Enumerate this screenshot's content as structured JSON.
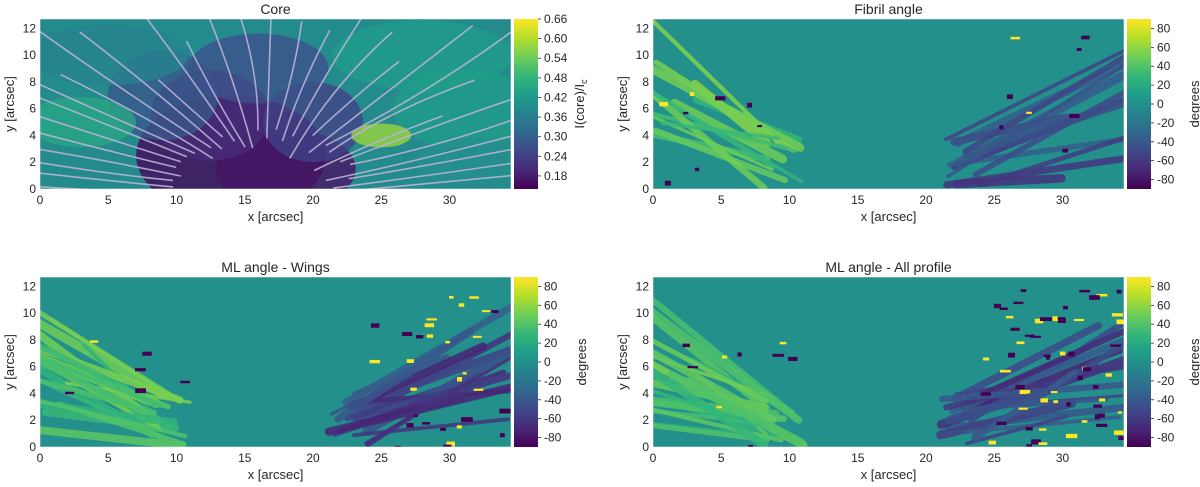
{
  "figure": {
    "colormap": [
      "#440154",
      "#482878",
      "#3e4989",
      "#31688e",
      "#26828e",
      "#1f9e89",
      "#35b779",
      "#6ece58",
      "#b5de2b",
      "#fde725"
    ],
    "contour_color": "#b9b2d6"
  },
  "chart_data": [
    {
      "type": "heatmap",
      "title": "Core",
      "xlabel": "x [arcsec]",
      "ylabel": "y [arcsec]",
      "xlim": [
        0,
        34.5
      ],
      "ylim": [
        0,
        12.7
      ],
      "xticks": [
        "0",
        "5",
        "10",
        "15",
        "20",
        "25",
        "30"
      ],
      "yticks": [
        "0",
        "2",
        "4",
        "6",
        "8",
        "10",
        "12"
      ],
      "colorbar": {
        "label": "I(core)/I",
        "label_sub": "c",
        "range": [
          0.14,
          0.66
        ],
        "ticks": [
          "0.18",
          "0.24",
          "0.30",
          "0.36",
          "0.42",
          "0.48",
          "0.54",
          "0.60",
          "0.66"
        ]
      },
      "overlay": "contours",
      "grid": false
    },
    {
      "type": "heatmap",
      "title": "Fibril angle",
      "xlabel": "x [arcsec]",
      "ylabel": "y [arcsec]",
      "xlim": [
        0,
        34.5
      ],
      "ylim": [
        0,
        12.7
      ],
      "xticks": [
        "0",
        "5",
        "10",
        "15",
        "20",
        "25",
        "30"
      ],
      "yticks": [
        "0",
        "2",
        "4",
        "6",
        "8",
        "10",
        "12"
      ],
      "colorbar": {
        "label": "degrees",
        "range": [
          -90,
          90
        ],
        "ticks": [
          "-80",
          "-60",
          "-40",
          "-20",
          "0",
          "20",
          "40",
          "60",
          "80"
        ]
      },
      "grid": false
    },
    {
      "type": "heatmap",
      "title": "ML angle - Wings",
      "xlabel": "x [arcsec]",
      "ylabel": "y [arcsec]",
      "xlim": [
        0,
        34.5
      ],
      "ylim": [
        0,
        12.7
      ],
      "xticks": [
        "0",
        "5",
        "10",
        "15",
        "20",
        "25",
        "30"
      ],
      "yticks": [
        "0",
        "2",
        "4",
        "6",
        "8",
        "10",
        "12"
      ],
      "colorbar": {
        "label": "degrees",
        "range": [
          -90,
          90
        ],
        "ticks": [
          "-80",
          "-60",
          "-40",
          "-20",
          "0",
          "20",
          "40",
          "60",
          "80"
        ]
      },
      "grid": false
    },
    {
      "type": "heatmap",
      "title": "ML angle - All profile",
      "xlabel": "x [arcsec]",
      "ylabel": "y [arcsec]",
      "xlim": [
        0,
        34.5
      ],
      "ylim": [
        0,
        12.7
      ],
      "xticks": [
        "0",
        "5",
        "10",
        "15",
        "20",
        "25",
        "30"
      ],
      "yticks": [
        "0",
        "2",
        "4",
        "6",
        "8",
        "10",
        "12"
      ],
      "colorbar": {
        "label": "degrees",
        "range": [
          -90,
          90
        ],
        "ticks": [
          "-80",
          "-60",
          "-40",
          "-20",
          "0",
          "20",
          "40",
          "60",
          "80"
        ]
      },
      "grid": false
    }
  ]
}
